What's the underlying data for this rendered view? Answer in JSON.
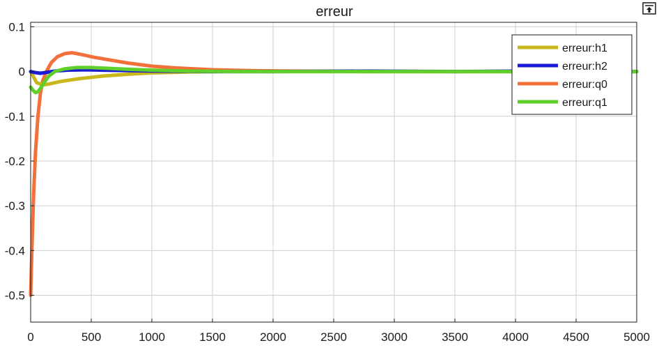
{
  "chart_data": {
    "type": "line",
    "title": "erreur",
    "xlabel": "",
    "ylabel": "",
    "xlim": [
      0,
      5000
    ],
    "ylim": [
      -0.56,
      0.11
    ],
    "xticks": [
      0,
      500,
      1000,
      1500,
      2000,
      2500,
      3000,
      3500,
      4000,
      4500,
      5000
    ],
    "yticks": [
      0.1,
      0,
      -0.1,
      -0.2,
      -0.3,
      -0.4,
      -0.5
    ],
    "xtick_labels": [
      "0",
      "500",
      "1000",
      "1500",
      "2000",
      "2500",
      "3000",
      "3500",
      "4000",
      "4500",
      "5000"
    ],
    "ytick_labels": [
      "0.1",
      "0",
      "-0.1",
      "-0.2",
      "-0.3",
      "-0.4",
      "-0.5"
    ],
    "grid": true,
    "legend_position": "top-right",
    "series": [
      {
        "name": "erreur:h1",
        "color": "#c9b81c",
        "points": [
          [
            0,
            0
          ],
          [
            20,
            -0.01
          ],
          [
            50,
            -0.025
          ],
          [
            100,
            -0.03
          ],
          [
            150,
            -0.028
          ],
          [
            250,
            -0.022
          ],
          [
            400,
            -0.016
          ],
          [
            600,
            -0.01
          ],
          [
            800,
            -0.006
          ],
          [
            1000,
            -0.003
          ],
          [
            1300,
            -0.001
          ],
          [
            1600,
            0
          ],
          [
            2000,
            0
          ],
          [
            3000,
            0
          ],
          [
            4000,
            0
          ],
          [
            5000,
            0
          ]
        ]
      },
      {
        "name": "erreur:h2",
        "color": "#1a1ad6",
        "points": [
          [
            0,
            0
          ],
          [
            30,
            -0.002
          ],
          [
            80,
            -0.004
          ],
          [
            130,
            -0.002
          ],
          [
            200,
            0.001
          ],
          [
            300,
            0.003
          ],
          [
            450,
            0.004
          ],
          [
            600,
            0.003
          ],
          [
            800,
            0.002
          ],
          [
            1100,
            0.001
          ],
          [
            1500,
            0
          ],
          [
            2000,
            0
          ],
          [
            2800,
            0.001
          ],
          [
            3500,
            0
          ],
          [
            4000,
            0.001
          ],
          [
            5000,
            0
          ]
        ]
      },
      {
        "name": "erreur:q0",
        "color": "#f2703a",
        "points": [
          [
            0,
            -0.5
          ],
          [
            10,
            -0.4
          ],
          [
            25,
            -0.27
          ],
          [
            40,
            -0.18
          ],
          [
            60,
            -0.1
          ],
          [
            80,
            -0.05
          ],
          [
            100,
            -0.02
          ],
          [
            130,
            0.0
          ],
          [
            170,
            0.02
          ],
          [
            220,
            0.033
          ],
          [
            280,
            0.04
          ],
          [
            340,
            0.042
          ],
          [
            420,
            0.038
          ],
          [
            520,
            0.032
          ],
          [
            650,
            0.026
          ],
          [
            800,
            0.019
          ],
          [
            1000,
            0.012
          ],
          [
            1200,
            0.008
          ],
          [
            1500,
            0.004
          ],
          [
            1800,
            0.002
          ],
          [
            2200,
            0.001
          ],
          [
            2800,
            0
          ],
          [
            3500,
            0
          ],
          [
            4200,
            0
          ],
          [
            5000,
            0
          ]
        ]
      },
      {
        "name": "erreur:q1",
        "color": "#5fcf2a",
        "points": [
          [
            0,
            -0.035
          ],
          [
            20,
            -0.042
          ],
          [
            40,
            -0.047
          ],
          [
            60,
            -0.045
          ],
          [
            80,
            -0.038
          ],
          [
            110,
            -0.025
          ],
          [
            150,
            -0.01
          ],
          [
            200,
            0.0
          ],
          [
            280,
            0.006
          ],
          [
            380,
            0.009
          ],
          [
            500,
            0.009
          ],
          [
            650,
            0.007
          ],
          [
            800,
            0.005
          ],
          [
            1000,
            0.003
          ],
          [
            1300,
            0.001
          ],
          [
            1700,
            0
          ],
          [
            2500,
            0
          ],
          [
            3500,
            0
          ],
          [
            5000,
            0
          ]
        ]
      }
    ]
  }
}
